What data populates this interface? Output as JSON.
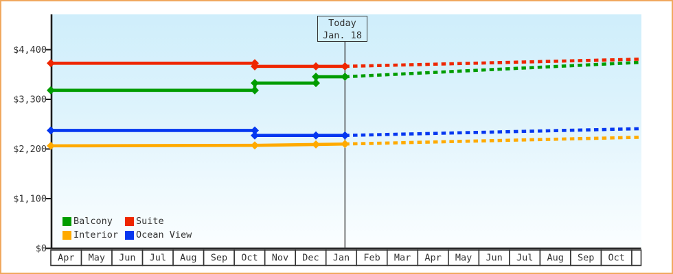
{
  "frame": {
    "border_color": "#f0a85e",
    "plot_bg_top": "#cfeefb",
    "plot_bg_bottom": "#fbfeff",
    "axis_color": "#1c1c1c",
    "text_color": "#333333"
  },
  "chart_data": {
    "type": "line",
    "description_layout": {
      "grid": false,
      "legend_position": "bottom-left",
      "solid_history_dashed_forecast": true
    },
    "y_axis": {
      "tick_labels": [
        "$0",
        "$1,100",
        "$2,200",
        "$3,300",
        "$4,400"
      ],
      "tick_values": [
        0,
        1100,
        2200,
        3300,
        4400
      ],
      "max_value_at_plot_top": 5180
    },
    "x_axis": {
      "categories": [
        "Apr",
        "May",
        "Jun",
        "Jul",
        "Aug",
        "Sep",
        "Oct",
        "Nov",
        "Dec",
        "Jan",
        "Feb",
        "Mar",
        "Apr",
        "May",
        "Jun",
        "Jul",
        "Aug",
        "Sep",
        "Oct"
      ]
    },
    "annotation": {
      "line1": "Today",
      "line2": "Jan. 18",
      "month_index": 9.62
    },
    "series": [
      {
        "name": "Balcony",
        "color": "#009c00",
        "solid_points": [
          {
            "month_index": 0.0,
            "price": 3500
          },
          {
            "month_index": 6.67,
            "price": 3500
          },
          {
            "month_index": 6.67,
            "price": 3660
          },
          {
            "month_index": 8.67,
            "price": 3660
          },
          {
            "month_index": 8.67,
            "price": 3800
          },
          {
            "month_index": 9.62,
            "price": 3800
          }
        ],
        "forecast_points": [
          {
            "month_index": 9.62,
            "price": 3800
          },
          {
            "month_index": 19.3,
            "price": 4120
          }
        ]
      },
      {
        "name": "Suite",
        "color": "#ee2600",
        "solid_points": [
          {
            "month_index": 0.0,
            "price": 4100
          },
          {
            "month_index": 6.67,
            "price": 4100
          },
          {
            "month_index": 6.67,
            "price": 4030
          },
          {
            "month_index": 8.67,
            "price": 4030
          },
          {
            "month_index": 9.62,
            "price": 4030
          }
        ],
        "forecast_points": [
          {
            "month_index": 9.62,
            "price": 4030
          },
          {
            "month_index": 19.3,
            "price": 4190
          }
        ]
      },
      {
        "name": "Interior",
        "color": "#ffaa00",
        "solid_points": [
          {
            "month_index": 0.0,
            "price": 2270
          },
          {
            "month_index": 6.67,
            "price": 2280
          },
          {
            "month_index": 8.67,
            "price": 2300
          },
          {
            "month_index": 9.62,
            "price": 2310
          }
        ],
        "forecast_points": [
          {
            "month_index": 9.62,
            "price": 2310
          },
          {
            "month_index": 19.3,
            "price": 2460
          }
        ]
      },
      {
        "name": "Ocean View",
        "color": "#0537f0",
        "solid_points": [
          {
            "month_index": 0.0,
            "price": 2610
          },
          {
            "month_index": 6.67,
            "price": 2610
          },
          {
            "month_index": 6.67,
            "price": 2500
          },
          {
            "month_index": 8.67,
            "price": 2500
          },
          {
            "month_index": 9.62,
            "price": 2500
          }
        ],
        "forecast_points": [
          {
            "month_index": 9.62,
            "price": 2500
          },
          {
            "month_index": 19.3,
            "price": 2650
          }
        ]
      }
    ]
  }
}
